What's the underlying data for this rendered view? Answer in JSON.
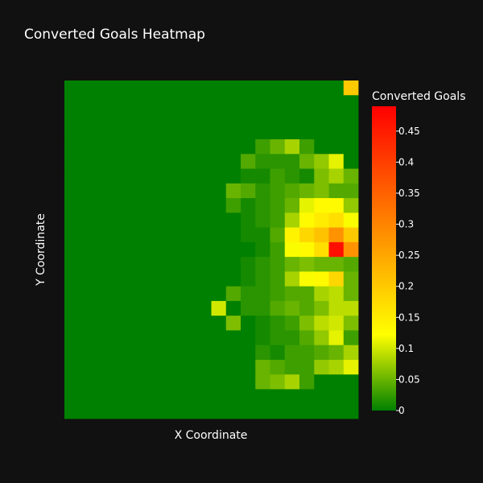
{
  "chart_data": {
    "type": "heatmap",
    "title": "Converted Goals Heatmap",
    "xlabel": "X Coordinate",
    "ylabel": "Y Coordinate",
    "colorbar": {
      "title": "Converted Goals",
      "range": [
        0,
        0.49
      ],
      "ticks": [
        0,
        0.05,
        0.1,
        0.15,
        0.2,
        0.25,
        0.3,
        0.35,
        0.4,
        0.45
      ],
      "tick_labels": [
        "0",
        "0.05",
        "0.1",
        "0.15",
        "0.2",
        "0.25",
        "0.3",
        "0.35",
        "0.4",
        "0.45"
      ],
      "colorscale": [
        [
          0,
          "#008000"
        ],
        [
          0.25,
          "#ffff00"
        ],
        [
          1,
          "#ff0000"
        ]
      ]
    },
    "grid": "off",
    "legend_placement": "right",
    "n_cols": 20,
    "n_rows": 23,
    "origin": "bottom",
    "z": [
      [
        0,
        0,
        0,
        0,
        0,
        0,
        0,
        0,
        0,
        0,
        0,
        0,
        0,
        0,
        0,
        0,
        0,
        0,
        0,
        0.2
      ],
      [
        0,
        0,
        0,
        0,
        0,
        0,
        0,
        0,
        0,
        0,
        0,
        0,
        0,
        0,
        0,
        0,
        0,
        0,
        0,
        0
      ],
      [
        0,
        0,
        0,
        0,
        0,
        0,
        0,
        0,
        0,
        0,
        0,
        0,
        0,
        0,
        0,
        0,
        0,
        0,
        0,
        0
      ],
      [
        0,
        0,
        0,
        0,
        0,
        0,
        0,
        0,
        0,
        0,
        0,
        0,
        0,
        0,
        0,
        0,
        0,
        0,
        0,
        0
      ],
      [
        0,
        0,
        0,
        0,
        0,
        0,
        0,
        0,
        0,
        0,
        0,
        0,
        0,
        0.03,
        0.05,
        0.08,
        0.03,
        0,
        0,
        0
      ],
      [
        0,
        0,
        0,
        0,
        0,
        0,
        0,
        0,
        0,
        0,
        0,
        0,
        0.04,
        0.02,
        0.02,
        0.02,
        0.05,
        0.07,
        0.11,
        0
      ],
      [
        0,
        0,
        0,
        0,
        0,
        0,
        0,
        0,
        0,
        0,
        0,
        0,
        0.01,
        0.01,
        0.03,
        0.02,
        0.01,
        0.06,
        0.08,
        0.05
      ],
      [
        0,
        0,
        0,
        0,
        0,
        0,
        0,
        0,
        0,
        0,
        0,
        0.05,
        0.04,
        0.02,
        0.03,
        0.04,
        0.05,
        0.06,
        0.04,
        0.04
      ],
      [
        0,
        0,
        0,
        0,
        0,
        0,
        0,
        0,
        0,
        0,
        0,
        0.03,
        0.01,
        0.02,
        0.03,
        0.05,
        0.11,
        0.13,
        0.13,
        0.07
      ],
      [
        0,
        0,
        0,
        0,
        0,
        0,
        0,
        0,
        0,
        0,
        0,
        0,
        0.01,
        0.02,
        0.03,
        0.08,
        0.13,
        0.15,
        0.17,
        0.12
      ],
      [
        0,
        0,
        0,
        0,
        0,
        0,
        0,
        0,
        0,
        0,
        0,
        0,
        0.01,
        0.01,
        0.04,
        0.14,
        0.18,
        0.21,
        0.28,
        0.2
      ],
      [
        0,
        0,
        0,
        0,
        0,
        0,
        0,
        0,
        0,
        0,
        0,
        0,
        0,
        0.01,
        0.03,
        0.12,
        0.13,
        0.17,
        0.47,
        0.28
      ],
      [
        0,
        0,
        0,
        0,
        0,
        0,
        0,
        0,
        0,
        0,
        0,
        0,
        0.01,
        0.02,
        0.03,
        0.05,
        0.06,
        0.05,
        0.05,
        0.04
      ],
      [
        0,
        0,
        0,
        0,
        0,
        0,
        0,
        0,
        0,
        0,
        0,
        0,
        0.01,
        0.02,
        0.03,
        0.08,
        0.12,
        0.13,
        0.18,
        0.05
      ],
      [
        0,
        0,
        0,
        0,
        0,
        0,
        0,
        0,
        0,
        0,
        0,
        0.04,
        0.02,
        0.02,
        0.03,
        0.04,
        0.04,
        0.08,
        0.09,
        0.05
      ],
      [
        0,
        0,
        0,
        0,
        0,
        0,
        0,
        0,
        0,
        0,
        0.1,
        0,
        0.02,
        0.02,
        0.04,
        0.05,
        0.04,
        0.06,
        0.09,
        0.09
      ],
      [
        0,
        0,
        0,
        0,
        0,
        0,
        0,
        0,
        0,
        0,
        0,
        0.06,
        0,
        0.01,
        0.02,
        0.03,
        0.06,
        0.09,
        0.1,
        0.06
      ],
      [
        0,
        0,
        0,
        0,
        0,
        0,
        0,
        0,
        0,
        0,
        0,
        0,
        0,
        0.01,
        0.02,
        0.02,
        0.04,
        0.07,
        0.11,
        0.03
      ],
      [
        0,
        0,
        0,
        0,
        0,
        0,
        0,
        0,
        0,
        0,
        0,
        0,
        0,
        0.02,
        0.01,
        0.03,
        0.03,
        0.04,
        0.05,
        0.08
      ],
      [
        0,
        0,
        0,
        0,
        0,
        0,
        0,
        0,
        0,
        0,
        0,
        0,
        0,
        0.05,
        0.04,
        0.03,
        0.03,
        0.07,
        0.08,
        0.11
      ],
      [
        0,
        0,
        0,
        0,
        0,
        0,
        0,
        0,
        0,
        0,
        0,
        0,
        0,
        0.05,
        0.06,
        0.08,
        0.03,
        0,
        0,
        0
      ],
      [
        0,
        0,
        0,
        0,
        0,
        0,
        0,
        0,
        0,
        0,
        0,
        0,
        0,
        0,
        0,
        0,
        0,
        0,
        0,
        0
      ],
      [
        0,
        0,
        0,
        0,
        0,
        0,
        0,
        0,
        0,
        0,
        0,
        0,
        0,
        0,
        0,
        0,
        0,
        0,
        0,
        0
      ]
    ]
  }
}
